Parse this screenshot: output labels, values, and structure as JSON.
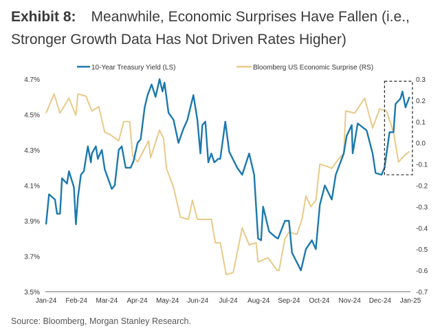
{
  "title": {
    "exhibit": "Exhibit 8:",
    "text": "Meanwhile, Economic Surprises Have Fallen (i.e., Stronger Growth Data Has Not Driven Rates Higher)"
  },
  "source": "Source: Bloomberg, Morgan Stanley Research.",
  "chart_data": {
    "type": "line",
    "legend_position": "top",
    "grid": false,
    "x_ticks": [
      "Jan-24",
      "Feb-24",
      "Mar-24",
      "Apr-24",
      "May-24",
      "Jun-24",
      "Jul-24",
      "Aug-24",
      "Sep-24",
      "Oct-24",
      "Nov-24",
      "Dec-24",
      "Jan-25"
    ],
    "x_range": [
      "2024-01-01",
      "2025-01-01"
    ],
    "y_left": {
      "range": [
        3.5,
        4.7
      ],
      "ticks": [
        "3.5%",
        "3.7%",
        "3.9%",
        "4.1%",
        "4.3%",
        "4.5%",
        "4.7%"
      ]
    },
    "y_right": {
      "range": [
        -0.7,
        0.3
      ],
      "ticks": [
        "-0.7",
        "-0.6",
        "-0.5",
        "-0.4",
        "-0.3",
        "-0.2",
        "-0.1",
        "0.0",
        "0.1",
        "0.2",
        "0.3"
      ]
    },
    "highlight_box": {
      "x": [
        "2024-12-06",
        "2025-01-03"
      ],
      "y_right": [
        -0.15,
        0.29
      ],
      "style": "dashed"
    },
    "series": [
      {
        "name": "10-Year Treasury Yield (LS)",
        "axis": "left",
        "color": "#1a78ad",
        "x": [
          "2024-01-01",
          "2024-01-04",
          "2024-01-10",
          "2024-01-12",
          "2024-01-15",
          "2024-01-17",
          "2024-01-22",
          "2024-01-24",
          "2024-01-29",
          "2024-01-31",
          "2024-02-02",
          "2024-02-05",
          "2024-02-08",
          "2024-02-12",
          "2024-02-15",
          "2024-02-16",
          "2024-02-20",
          "2024-02-22",
          "2024-02-26",
          "2024-02-29",
          "2024-03-07",
          "2024-03-10",
          "2024-03-14",
          "2024-03-17",
          "2024-03-21",
          "2024-03-26",
          "2024-03-29",
          "2024-04-02",
          "2024-04-05",
          "2024-04-09",
          "2024-04-12",
          "2024-04-16",
          "2024-04-20",
          "2024-04-24",
          "2024-04-27",
          "2024-04-29",
          "2024-05-03",
          "2024-05-08",
          "2024-05-13",
          "2024-05-18",
          "2024-05-22",
          "2024-05-28",
          "2024-06-01",
          "2024-06-04",
          "2024-06-06",
          "2024-06-09",
          "2024-06-12",
          "2024-06-15",
          "2024-06-18",
          "2024-06-22",
          "2024-06-24",
          "2024-06-29",
          "2024-07-03",
          "2024-07-11",
          "2024-07-16",
          "2024-07-23",
          "2024-07-28",
          "2024-07-30",
          "2024-08-01",
          "2024-08-04",
          "2024-08-06",
          "2024-08-12",
          "2024-08-18",
          "2024-08-21",
          "2024-08-28",
          "2024-09-01",
          "2024-09-04",
          "2024-09-13",
          "2024-09-18",
          "2024-09-24",
          "2024-09-28",
          "2024-10-02",
          "2024-10-07",
          "2024-10-14",
          "2024-10-18",
          "2024-10-26",
          "2024-10-29",
          "2024-11-03",
          "2024-11-04",
          "2024-11-09",
          "2024-11-18",
          "2024-11-24",
          "2024-11-27",
          "2024-12-03",
          "2024-12-06",
          "2024-12-11",
          "2024-12-15",
          "2024-12-17",
          "2024-12-22",
          "2024-12-24",
          "2024-12-27",
          "2024-12-31"
        ],
        "y": [
          3.88,
          4.05,
          4.02,
          3.94,
          3.94,
          4.14,
          4.11,
          4.18,
          4.09,
          3.88,
          4.03,
          4.16,
          4.18,
          4.32,
          4.23,
          4.28,
          4.32,
          4.25,
          4.3,
          4.19,
          4.08,
          4.1,
          4.3,
          4.32,
          4.2,
          4.2,
          4.24,
          4.34,
          4.36,
          4.54,
          4.61,
          4.67,
          4.6,
          4.7,
          4.63,
          4.68,
          4.51,
          4.47,
          4.34,
          4.42,
          4.47,
          4.61,
          4.47,
          4.28,
          4.44,
          4.46,
          4.23,
          4.28,
          4.23,
          4.25,
          4.25,
          4.46,
          4.29,
          4.2,
          4.16,
          4.28,
          4.16,
          3.98,
          3.8,
          3.79,
          3.98,
          3.84,
          3.81,
          3.8,
          3.9,
          3.9,
          3.72,
          3.62,
          3.74,
          3.79,
          3.74,
          3.99,
          4.1,
          4.02,
          4.16,
          4.28,
          4.38,
          4.44,
          4.28,
          4.45,
          4.41,
          4.28,
          4.17,
          4.16,
          4.2,
          4.4,
          4.4,
          4.56,
          4.59,
          4.63,
          4.54,
          4.6
        ]
      },
      {
        "name": "Bloomberg US Economic Surprise (RS)",
        "axis": "right",
        "color": "#e9c986",
        "x": [
          "2024-01-01",
          "2024-01-09",
          "2024-01-15",
          "2024-01-24",
          "2024-01-31",
          "2024-02-02",
          "2024-02-10",
          "2024-02-16",
          "2024-02-23",
          "2024-02-29",
          "2024-03-05",
          "2024-03-14",
          "2024-03-19",
          "2024-03-25",
          "2024-03-28",
          "2024-04-02",
          "2024-04-13",
          "2024-04-15",
          "2024-04-24",
          "2024-04-28",
          "2024-05-01",
          "2024-05-08",
          "2024-05-15",
          "2024-05-23",
          "2024-05-27",
          "2024-06-01",
          "2024-06-15",
          "2024-06-19",
          "2024-06-24",
          "2024-06-30",
          "2024-07-07",
          "2024-07-16",
          "2024-07-23",
          "2024-07-30",
          "2024-08-01",
          "2024-08-11",
          "2024-08-20",
          "2024-08-22",
          "2024-08-28",
          "2024-09-01",
          "2024-09-09",
          "2024-09-14",
          "2024-09-18",
          "2024-09-23",
          "2024-09-28",
          "2024-10-02",
          "2024-10-09",
          "2024-10-14",
          "2024-10-20",
          "2024-10-26",
          "2024-10-28",
          "2024-11-06",
          "2024-11-16",
          "2024-11-24",
          "2024-12-01",
          "2024-12-08",
          "2024-12-15",
          "2024-12-20",
          "2024-12-26",
          "2024-12-31"
        ],
        "y": [
          0.14,
          0.23,
          0.14,
          0.21,
          0.13,
          0.23,
          0.22,
          0.15,
          0.17,
          0.05,
          0.04,
          0.01,
          0.1,
          0.1,
          -0.06,
          -0.09,
          0.01,
          -0.07,
          0.06,
          0.02,
          -0.12,
          -0.21,
          -0.35,
          -0.36,
          -0.27,
          -0.36,
          -0.36,
          -0.47,
          -0.47,
          -0.62,
          -0.61,
          -0.4,
          -0.48,
          -0.47,
          -0.56,
          -0.54,
          -0.6,
          -0.6,
          -0.45,
          -0.42,
          -0.43,
          -0.36,
          -0.25,
          -0.3,
          -0.27,
          -0.1,
          -0.11,
          -0.12,
          -0.08,
          -0.05,
          0.15,
          0.14,
          0.21,
          0.07,
          0.16,
          0.15,
          0.05,
          -0.09,
          -0.06,
          -0.04
        ]
      }
    ]
  }
}
